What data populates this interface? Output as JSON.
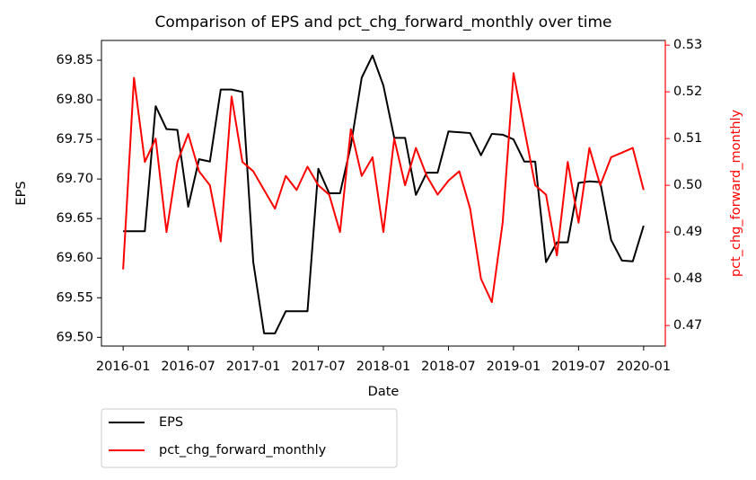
{
  "chart_data": {
    "type": "line",
    "title": "Comparison of EPS and pct_chg_forward_monthly over time",
    "x_label": "Date",
    "y_label": "EPS",
    "y2_label": "pct_chg_forward_monthly",
    "x": [
      "2016-01",
      "2016-02",
      "2016-03",
      "2016-04",
      "2016-05",
      "2016-06",
      "2016-07",
      "2016-08",
      "2016-09",
      "2016-10",
      "2016-11",
      "2016-12",
      "2017-01",
      "2017-02",
      "2017-03",
      "2017-04",
      "2017-05",
      "2017-06",
      "2017-07",
      "2017-08",
      "2017-09",
      "2017-10",
      "2017-11",
      "2017-12",
      "2018-01",
      "2018-02",
      "2018-03",
      "2018-04",
      "2018-05",
      "2018-06",
      "2018-07",
      "2018-08",
      "2018-09",
      "2018-10",
      "2018-11",
      "2018-12",
      "2019-01",
      "2019-02",
      "2019-03",
      "2019-04",
      "2019-05",
      "2019-06",
      "2019-07",
      "2019-08",
      "2019-09",
      "2019-10",
      "2019-11",
      "2019-12",
      "2020-01"
    ],
    "series": [
      {
        "name": "EPS",
        "color": "#000000",
        "values": [
          69.634,
          69.634,
          69.634,
          69.792,
          69.763,
          69.762,
          69.665,
          69.725,
          69.722,
          69.813,
          69.813,
          69.81,
          69.595,
          69.505,
          69.505,
          69.533,
          69.533,
          69.533,
          69.713,
          69.682,
          69.682,
          69.742,
          69.828,
          69.856,
          69.818,
          69.752,
          69.752,
          69.68,
          69.708,
          69.708,
          69.76,
          69.759,
          69.758,
          69.73,
          69.757,
          69.756,
          69.75,
          69.722,
          69.722,
          69.595,
          69.62,
          69.62,
          69.695,
          69.697,
          69.696,
          69.623,
          69.597,
          69.596,
          69.641
        ]
      },
      {
        "name": "pct_chg_forward_monthly",
        "color": "#ff0000",
        "axis": "y2",
        "values": [
          0.482,
          0.523,
          0.505,
          0.51,
          0.49,
          0.505,
          0.511,
          0.503,
          0.5,
          0.488,
          0.519,
          0.505,
          0.503,
          0.499,
          0.495,
          0.502,
          0.499,
          0.504,
          0.5,
          0.498,
          0.49,
          0.512,
          0.502,
          0.506,
          0.49,
          0.51,
          0.5,
          0.508,
          0.502,
          0.498,
          0.501,
          0.503,
          0.495,
          0.48,
          0.475,
          0.492,
          0.524,
          0.512,
          0.5,
          0.498,
          0.485,
          0.505,
          0.492,
          0.508,
          0.5,
          0.506,
          0.507,
          0.508,
          0.499
        ]
      }
    ],
    "xlim": [
      "2015-11",
      "2020-03"
    ],
    "xticks": [
      "2016-01",
      "2016-07",
      "2017-01",
      "2017-07",
      "2018-01",
      "2018-07",
      "2019-01",
      "2019-07",
      "2020-01"
    ],
    "ylim": [
      69.489,
      69.875
    ],
    "yticks": [
      {
        "value": 69.5,
        "label": "69.50"
      },
      69.55,
      {
        "value": 69.6,
        "label": "69.60"
      },
      69.65,
      {
        "value": 69.7,
        "label": "69.70"
      },
      69.75,
      {
        "value": 69.8,
        "label": "69.80"
      },
      69.85
    ],
    "y2lim": [
      0.4656,
      0.531
    ],
    "y2ticks": [
      0.47,
      0.48,
      0.49,
      {
        "value": 0.5,
        "label": "0.50"
      },
      0.51,
      0.52,
      0.53
    ]
  }
}
